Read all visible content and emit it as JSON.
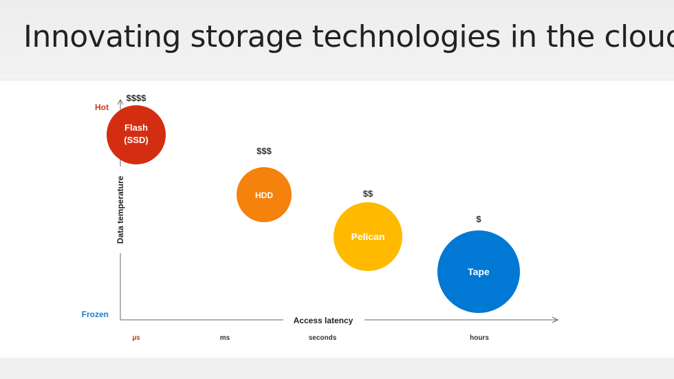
{
  "slide": {
    "title": "Innovating storage technologies in the cloud"
  },
  "axes": {
    "y_label": "Data temperature",
    "y_top": "Hot",
    "y_bottom": "Frozen",
    "x_label": "Access latency",
    "x_ticks": [
      "µs",
      "ms",
      "seconds",
      "hours"
    ]
  },
  "technologies": [
    {
      "label_lines": [
        "Flash",
        "(SSD)"
      ],
      "cost": "$$$$",
      "color": "#d42e12"
    },
    {
      "label_lines": [
        "HDD"
      ],
      "cost": "$$$",
      "color": "#f5820d"
    },
    {
      "label_lines": [
        "Pelican"
      ],
      "cost": "$$",
      "color": "#ffba00"
    },
    {
      "label_lines": [
        "Tape"
      ],
      "cost": "$",
      "color": "#0078d4"
    }
  ],
  "colors": {
    "hot": "#c8381e",
    "frozen": "#1f7ac2",
    "tick_first": "#c8381e",
    "axis": "#555555",
    "text": "#333333"
  }
}
